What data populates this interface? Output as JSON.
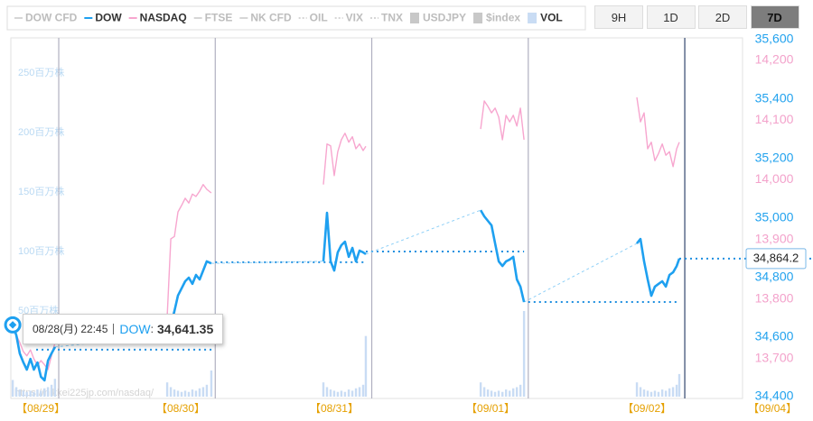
{
  "chart_data": {
    "type": "line",
    "buttons": [
      "9H",
      "1D",
      "2D",
      "7D"
    ],
    "active_button": 3,
    "x": [
      0.706,
      0.729,
      0.751,
      0.774,
      0.796,
      0.819,
      0.841,
      0.864,
      0.886,
      0.909,
      0.931,
      0.954,
      0.976,
      1,
      1.693,
      1.716,
      1.739,
      1.762,
      1.785,
      1.808,
      1.831,
      1.854,
      1.877,
      1.9,
      1.923,
      1.946,
      1.975,
      2,
      2.691,
      2.714,
      2.737,
      2.76,
      2.783,
      2.806,
      2.829,
      2.853,
      2.876,
      2.899,
      2.922,
      2.945,
      2.962,
      3,
      3.696,
      3.719,
      3.742,
      3.765,
      3.788,
      3.811,
      3.835,
      3.858,
      3.881,
      3.904,
      3.927,
      3.95,
      3.973,
      4,
      4.694,
      4.717,
      4.74,
      4.763,
      4.786,
      4.809,
      4.832,
      4.856,
      4.879,
      4.902,
      4.925,
      4.948,
      4.965
    ],
    "xlim": [
      0.694,
      5.369
    ],
    "xticks": [
      {
        "value": 0.885,
        "label": "【08/29】"
      },
      {
        "value": 1.779,
        "label": "【08/30】"
      },
      {
        "value": 2.76,
        "label": "【08/31】"
      },
      {
        "value": 3.759,
        "label": "【09/01】"
      },
      {
        "value": 4.758,
        "label": "【09/02】"
      },
      {
        "value": 5.56,
        "label": "【09/04】"
      }
    ],
    "day_boundaries": [
      1,
      2,
      3,
      4,
      5
    ],
    "ylim": [
      34400,
      35600
    ],
    "yticks": [
      {
        "value": 34400,
        "label": "34,400"
      },
      {
        "value": 34600,
        "label": "34,600"
      },
      {
        "value": 34800,
        "label": "34,800"
      },
      {
        "value": 35000,
        "label": "35,000"
      },
      {
        "value": 35200,
        "label": "35,200"
      },
      {
        "value": 35400,
        "label": "35,400"
      },
      {
        "value": 35600,
        "label": "35,600"
      }
    ],
    "y2lim": [
      13636.6,
      14234.7
    ],
    "y2ticks": [
      {
        "value": 13700,
        "label": "13,700"
      },
      {
        "value": 13800,
        "label": "13,800"
      },
      {
        "value": 13900,
        "label": "13,900"
      },
      {
        "value": 14000,
        "label": "14,000"
      },
      {
        "value": 14100,
        "label": "14,100"
      },
      {
        "value": 14200,
        "label": "14,200"
      }
    ],
    "y3lim": [
      0,
      300
    ],
    "y3ticks": [
      {
        "value": 50,
        "label": "50百万株"
      },
      {
        "value": 100,
        "label": "100百万株"
      },
      {
        "value": 150,
        "label": "150百万株"
      },
      {
        "value": 200,
        "label": "200百万株"
      },
      {
        "value": 250,
        "label": "250百万株"
      }
    ],
    "grid": false,
    "series": [
      {
        "name": "DOW CFD",
        "color": "#c8c8c8",
        "style": "line",
        "visible": false
      },
      {
        "name": "DOW",
        "color": "#1ea0f0",
        "style": "line",
        "visible": true,
        "axis": "y",
        "connect_gaps": "dashed",
        "values": [
          34641.35,
          34606,
          34545,
          34515,
          34491,
          34527,
          34491,
          34515,
          34467,
          34455,
          34521,
          34545,
          34567,
          null,
          34606,
          34640,
          34688,
          34740,
          34764,
          34788,
          34800,
          34779,
          34809,
          34794,
          34824,
          34855,
          34848,
          null,
          34855,
          35018,
          34855,
          34824,
          34885,
          34909,
          34921,
          34870,
          34900,
          34855,
          34891,
          34885,
          34879,
          null,
          35027,
          35006,
          34991,
          34976,
          34915,
          34855,
          34839,
          34855,
          34861,
          34870,
          34794,
          34770,
          34718,
          null,
          34915,
          34930,
          34855,
          34794,
          34739,
          34770,
          34779,
          34788,
          34770,
          34809,
          34818,
          34839,
          34864.2
        ]
      },
      {
        "name": "NASDAQ",
        "color": "#f7a6cf",
        "style": "line",
        "visible": true,
        "axis": "y2",
        "values": [
          13757,
          13740,
          13727,
          13712,
          13705,
          13715,
          13700,
          13689,
          13697,
          13690,
          13682,
          13705,
          13727,
          null,
          13772,
          13901,
          13905,
          13946,
          13957,
          13969,
          13961,
          13976,
          13972,
          13981,
          13992,
          13984,
          13978,
          null,
          13992,
          14060,
          14057,
          14007,
          14047,
          14067,
          14078,
          14063,
          14072,
          14052,
          14060,
          14049,
          14056,
          null,
          14085,
          14132,
          14123,
          14112,
          14120,
          14105,
          14067,
          14108,
          14097,
          14108,
          14090,
          14120,
          14067,
          null,
          14138,
          14097,
          14112,
          14052,
          14063,
          14032,
          14044,
          14060,
          14041,
          14047,
          14022,
          14052,
          14063
        ]
      },
      {
        "name": "FTSE",
        "color": "#c8c8c8",
        "style": "line",
        "visible": false
      },
      {
        "name": "NK CFD",
        "color": "#c8c8c8",
        "style": "line",
        "visible": false
      },
      {
        "name": "OIL",
        "color": "#c8c8c8",
        "style": "dashed",
        "visible": false
      },
      {
        "name": "VIX",
        "color": "#c8c8c8",
        "style": "dashed",
        "visible": false
      },
      {
        "name": "TNX",
        "color": "#c8c8c8",
        "style": "dashed",
        "visible": false
      },
      {
        "name": "USDJPY",
        "color": "#c8c8c8",
        "style": "square",
        "visible": false
      },
      {
        "name": "$index",
        "color": "#c8c8c8",
        "style": "square",
        "visible": false
      },
      {
        "name": "VOL",
        "color": "#c9dcf4",
        "style": "square",
        "visible": true,
        "axis": "y3",
        "kind": "bar",
        "values": [
          14,
          8,
          6,
          5,
          4,
          5,
          4,
          6,
          5,
          7,
          8,
          10,
          15,
          null,
          12,
          8,
          6,
          5,
          4,
          5,
          4,
          6,
          5,
          7,
          8,
          10,
          22,
          null,
          12,
          8,
          6,
          5,
          4,
          5,
          4,
          6,
          5,
          7,
          8,
          10,
          51,
          null,
          12,
          8,
          6,
          5,
          4,
          5,
          4,
          6,
          5,
          7,
          8,
          10,
          72,
          null,
          12,
          8,
          6,
          5,
          4,
          5,
          4,
          6,
          5,
          7,
          8,
          10,
          19
        ]
      }
    ],
    "ref_lines": [
      {
        "x": [
          0.856,
          1.98
        ],
        "value": 34558
      },
      {
        "x": [
          2.0,
          2.962
        ],
        "value": 34852
      },
      {
        "x": [
          2.962,
          3.973
        ],
        "value": 34888
      },
      {
        "x": [
          4.0,
          4.965
        ],
        "value": 34718
      }
    ],
    "current_value": {
      "value": 34864.2,
      "label": "34,864.2"
    },
    "tooltip": {
      "time": "08/28(月) 22:45",
      "delimiter": ":",
      "value": 34641.35,
      "label": "34,641.35"
    },
    "watermark": "https://nikkei225jp.com/nasdaq/"
  }
}
